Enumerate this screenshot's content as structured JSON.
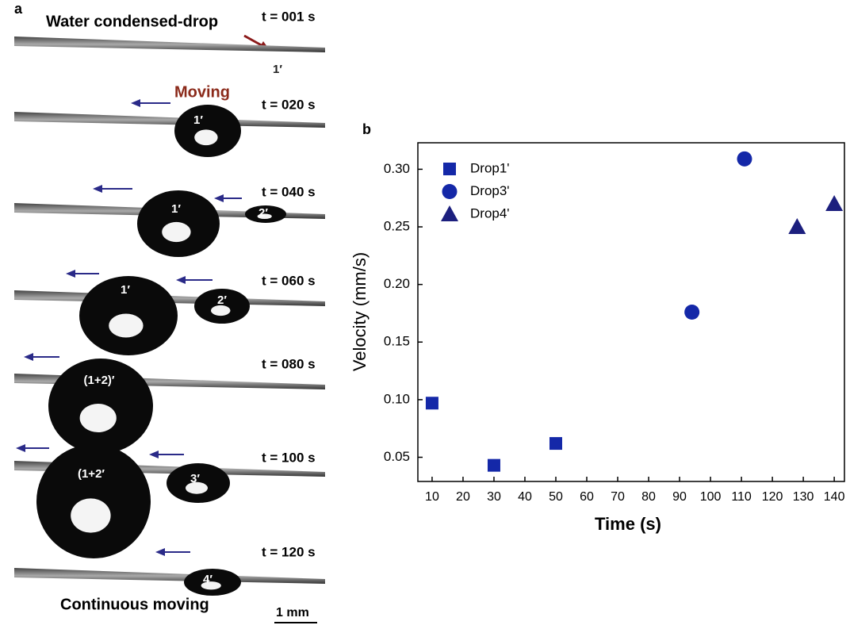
{
  "panel_a": {
    "label": "a",
    "title": "Water condensed-drop",
    "moving": "Moving",
    "footer": "Continuous moving",
    "scale_bar": "1 mm",
    "frames": [
      {
        "time": "t = 001 s",
        "drops": [
          "1′"
        ]
      },
      {
        "time": "t = 020 s",
        "drops": [
          "1′"
        ]
      },
      {
        "time": "t = 040 s",
        "drops": [
          "1′",
          "2′"
        ]
      },
      {
        "time": "t = 060 s",
        "drops": [
          "1′",
          "2′"
        ]
      },
      {
        "time": "t = 080 s",
        "drops": [
          "(1+2)′"
        ]
      },
      {
        "time": "t = 100 s",
        "drops": [
          "(1+2′",
          "3′"
        ]
      },
      {
        "time": "t = 120 s",
        "drops": [
          "4′"
        ]
      }
    ]
  },
  "chart_data": {
    "type": "scatter",
    "panel_label": "b",
    "x_label": "Time (s)",
    "y_label": "Velocity (mm/s)",
    "xlim": [
      5.4,
      143.3
    ],
    "ylim": [
      0.029,
      0.323
    ],
    "xticks": [
      10,
      20,
      30,
      40,
      50,
      60,
      70,
      80,
      90,
      100,
      110,
      120,
      130,
      140
    ],
    "yticks": [
      0.05,
      {
        "value": 0.1,
        "label": "0.10"
      },
      0.15,
      {
        "value": 0.2,
        "label": "0.20"
      },
      0.25,
      {
        "value": 0.3,
        "label": "0.30"
      }
    ],
    "legend": "upper-left",
    "series": [
      {
        "name": "Drop1'",
        "marker": "square",
        "color": "#1428a8",
        "x": [
          10,
          30,
          50
        ],
        "values": [
          0.097,
          0.043,
          0.062
        ]
      },
      {
        "name": "Drop3'",
        "marker": "circle",
        "color": "#1428a8",
        "x": [
          94,
          111
        ],
        "values": [
          0.176,
          0.309
        ]
      },
      {
        "name": "Drop4'",
        "marker": "triangle",
        "color": "#1c1f7e",
        "x": [
          128,
          140
        ],
        "values": [
          0.25,
          0.27
        ]
      }
    ]
  }
}
